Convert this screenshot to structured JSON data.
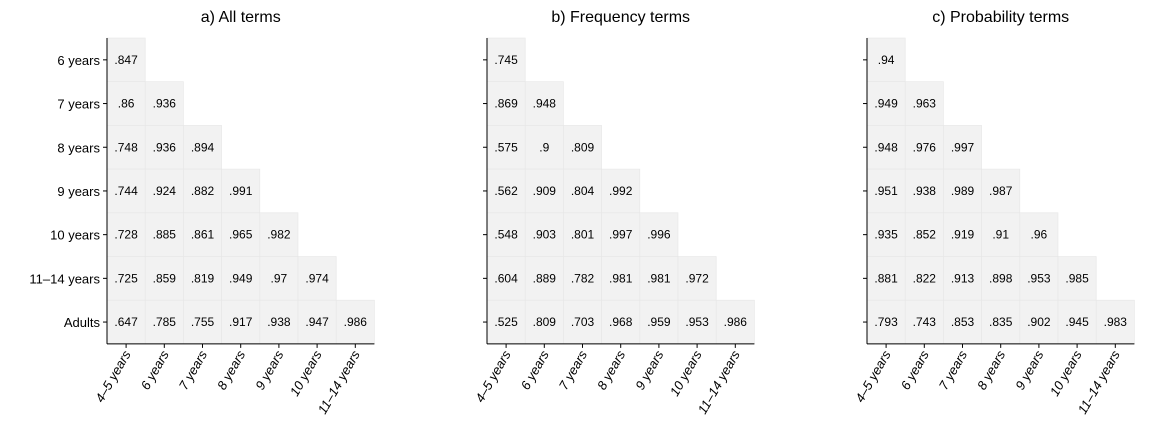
{
  "chart_data": [
    {
      "type": "heatmap",
      "title": "a) All terms",
      "x_categories": [
        "4–5 years",
        "6 years",
        "7 years",
        "8 years",
        "9 years",
        "10 years",
        "11–14 years"
      ],
      "y_categories": [
        "6 years",
        "7 years",
        "8 years",
        "9 years",
        "10 years",
        "11–14 years",
        "Adults"
      ],
      "y_tick_labels": [
        "6 years",
        "7 years",
        "8 years",
        "9 years",
        "10 years",
        "11–14 years",
        "Adults"
      ],
      "rows": [
        [
          ".847"
        ],
        [
          ".86",
          ".936"
        ],
        [
          ".748",
          ".936",
          ".894"
        ],
        [
          ".744",
          ".924",
          ".882",
          ".991"
        ],
        [
          ".728",
          ".885",
          ".861",
          ".965",
          ".982"
        ],
        [
          ".725",
          ".859",
          ".819",
          ".949",
          ".97",
          ".974"
        ],
        [
          ".647",
          ".785",
          ".755",
          ".917",
          ".938",
          ".947",
          ".986"
        ]
      ]
    },
    {
      "type": "heatmap",
      "title": "b) Frequency terms",
      "x_categories": [
        "4–5 years",
        "6 years",
        "7 years",
        "8 years",
        "9 years",
        "10 years",
        "11–14 years"
      ],
      "y_categories": [
        "6 years",
        "7 years",
        "8 years",
        "9 years",
        "10 years",
        "11–14 years",
        "Adults"
      ],
      "y_tick_labels": [],
      "rows": [
        [
          ".745"
        ],
        [
          ".869",
          ".948"
        ],
        [
          ".575",
          ".9",
          ".809"
        ],
        [
          ".562",
          ".909",
          ".804",
          ".992"
        ],
        [
          ".548",
          ".903",
          ".801",
          ".997",
          ".996"
        ],
        [
          ".604",
          ".889",
          ".782",
          ".981",
          ".981",
          ".972"
        ],
        [
          ".525",
          ".809",
          ".703",
          ".968",
          ".959",
          ".953",
          ".986"
        ]
      ]
    },
    {
      "type": "heatmap",
      "title": "c) Probability terms",
      "x_categories": [
        "4–5 years",
        "6 years",
        "7 years",
        "8 years",
        "9 years",
        "10 years",
        "11–14 years"
      ],
      "y_categories": [
        "6 years",
        "7 years",
        "8 years",
        "9 years",
        "10 years",
        "11–14 years",
        "Adults"
      ],
      "y_tick_labels": [],
      "rows": [
        [
          ".94"
        ],
        [
          ".949",
          ".963"
        ],
        [
          ".948",
          ".976",
          ".997"
        ],
        [
          ".951",
          ".938",
          ".989",
          ".987"
        ],
        [
          ".935",
          ".852",
          ".919",
          ".91",
          ".96"
        ],
        [
          ".881",
          ".822",
          ".913",
          ".898",
          ".953",
          ".985"
        ],
        [
          ".793",
          ".743",
          ".853",
          ".835",
          ".902",
          ".945",
          ".983"
        ]
      ]
    }
  ],
  "colors": {
    "cell_fill": "#f2f2f2",
    "cell_border": "#e6e6e6",
    "axis": "#000000",
    "text": "#000000",
    "background": "#ffffff"
  }
}
